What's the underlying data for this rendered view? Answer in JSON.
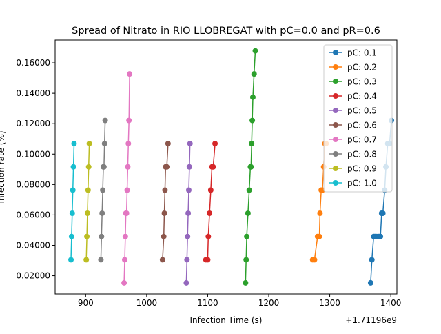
{
  "chart_data": {
    "type": "line",
    "title": "Spread of Nitrato in RIO LLOBREGAT with pC=0.0 and pR=0.6",
    "xlabel": "Infection Time (s)",
    "ylabel": "Infection rate (%)",
    "x_offset_label": "+1.71196e9",
    "xlim": [
      850,
      1410
    ],
    "ylim": [
      0.008,
      0.175
    ],
    "x_ticks": [
      900,
      1000,
      1100,
      1200,
      1300,
      1400
    ],
    "x_tick_labels": [
      "900",
      "1000",
      "1100",
      "1200",
      "1300",
      "1400"
    ],
    "y_ticks": [
      0.02,
      0.04,
      0.06,
      0.08,
      0.1,
      0.12,
      0.14,
      0.16
    ],
    "y_tick_labels": [
      "0.02000",
      "0.04000",
      "0.06000",
      "0.08000",
      "0.10000",
      "0.12000",
      "0.14000",
      "0.16000"
    ],
    "legend_position": "top-right",
    "grid": false,
    "series": [
      {
        "name": "pC: 0.1",
        "color": "#1f77b4",
        "x": [
          1367,
          1369,
          1372,
          1374,
          1376,
          1379,
          1381,
          1383,
          1385,
          1387,
          1390,
          1392,
          1395,
          1398,
          1401
        ],
        "y": [
          0.0153,
          0.0305,
          0.0458,
          0.0458,
          0.0458,
          0.0458,
          0.0458,
          0.0458,
          0.0611,
          0.0611,
          0.0763,
          0.0916,
          0.1069,
          0.1069,
          0.1221
        ]
      },
      {
        "name": "pC: 0.2",
        "color": "#ff7f0e",
        "x": [
          1272,
          1275,
          1280,
          1283,
          1284,
          1286,
          1288,
          1290,
          1292,
          1294
        ],
        "y": [
          0.0305,
          0.0305,
          0.0458,
          0.0458,
          0.0611,
          0.0763,
          0.0763,
          0.0916,
          0.1069,
          0.1069
        ]
      },
      {
        "name": "pC: 0.3",
        "color": "#2ca02c",
        "x": [
          1162,
          1163,
          1164,
          1166,
          1168,
          1170,
          1171,
          1172,
          1173,
          1174,
          1176,
          1178
        ],
        "y": [
          0.0153,
          0.0305,
          0.0458,
          0.0611,
          0.0763,
          0.0916,
          0.0916,
          0.1069,
          0.1221,
          0.1374,
          0.1527,
          0.1679
        ]
      },
      {
        "name": "pC: 0.4",
        "color": "#d62728",
        "x": [
          1097,
          1100,
          1101,
          1103,
          1105,
          1107,
          1109,
          1112
        ],
        "y": [
          0.0305,
          0.0305,
          0.0458,
          0.0611,
          0.0763,
          0.0916,
          0.0916,
          0.1069
        ]
      },
      {
        "name": "pC: 0.5",
        "color": "#9467bd",
        "x": [
          1065,
          1066,
          1067,
          1068,
          1069,
          1070,
          1071
        ],
        "y": [
          0.0153,
          0.0305,
          0.0458,
          0.0611,
          0.0763,
          0.0916,
          0.1069
        ]
      },
      {
        "name": "pC: 0.6",
        "color": "#8c564b",
        "x": [
          1026,
          1028,
          1029,
          1030,
          1031,
          1033,
          1035
        ],
        "y": [
          0.0305,
          0.0458,
          0.0611,
          0.0763,
          0.0916,
          0.0916,
          0.1069
        ]
      },
      {
        "name": "pC: 0.7",
        "color": "#e377c2",
        "x": [
          963,
          964,
          965,
          966,
          967,
          968,
          969,
          970,
          971,
          972
        ],
        "y": [
          0.0153,
          0.0305,
          0.0458,
          0.0611,
          0.0611,
          0.0763,
          0.0916,
          0.1069,
          0.1221,
          0.1527
        ]
      },
      {
        "name": "pC: 0.8",
        "color": "#7f7f7f",
        "x": [
          925,
          926,
          927,
          928,
          929,
          930,
          931,
          932
        ],
        "y": [
          0.0305,
          0.0458,
          0.0611,
          0.0763,
          0.0916,
          0.0916,
          0.1069,
          0.1221
        ]
      },
      {
        "name": "pC: 0.9",
        "color": "#bcbd22",
        "x": [
          901,
          902,
          903,
          904,
          905,
          906
        ],
        "y": [
          0.0305,
          0.0458,
          0.0611,
          0.0763,
          0.0916,
          0.1069
        ]
      },
      {
        "name": "pC: 1.0",
        "color": "#17becf",
        "x": [
          876,
          877,
          878,
          879,
          880,
          881
        ],
        "y": [
          0.0305,
          0.0458,
          0.0611,
          0.0763,
          0.0916,
          0.1069
        ]
      }
    ]
  }
}
